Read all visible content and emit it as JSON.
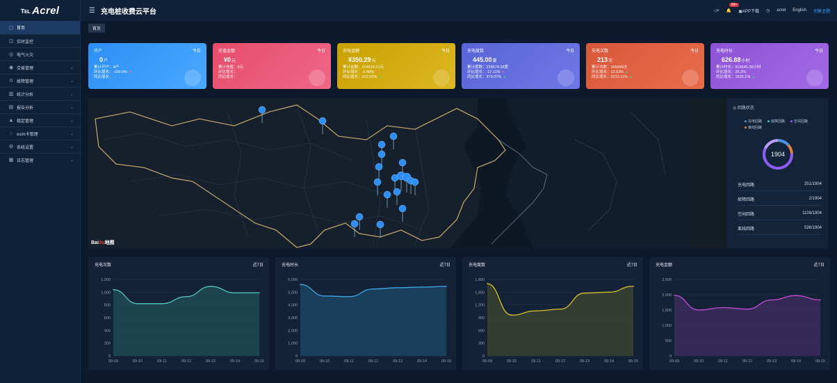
{
  "app": {
    "logo_mark": "℡",
    "logo_text": "Acrel",
    "page_title": "充电桩收费云平台",
    "menu_icon": "hamburger-icon"
  },
  "header": {
    "badge": "99+",
    "app_download": "APP下载",
    "user": "acrel",
    "language": "English",
    "switch_theme": "切换主题"
  },
  "tabs": [
    {
      "label": "首页"
    }
  ],
  "sidebar": {
    "items": [
      {
        "icon": "▢",
        "label": "首页",
        "chevron": false
      },
      {
        "icon": "◫",
        "label": "实时监控",
        "chevron": false
      },
      {
        "icon": "◎",
        "label": "电气火灾",
        "chevron": false
      },
      {
        "icon": "◉",
        "label": "交易管理",
        "chevron": true
      },
      {
        "icon": "⊙",
        "label": "故障管理",
        "chevron": true
      },
      {
        "icon": "▥",
        "label": "统计分析",
        "chevron": true
      },
      {
        "icon": "▤",
        "label": "报告分析",
        "chevron": true
      },
      {
        "icon": "▲",
        "label": "稳定管理",
        "chevron": true
      },
      {
        "icon": "◌",
        "label": "esim卡管理",
        "chevron": true
      },
      {
        "icon": "⚙",
        "label": "系统设置",
        "chevron": true
      },
      {
        "icon": "▦",
        "label": "日志管理",
        "chevron": true
      }
    ]
  },
  "cards": [
    {
      "title": "开户",
      "today": "今日",
      "value": "0",
      "unit": "户",
      "lines": [
        "累计开户：4户",
        "环比增长：-100.0%",
        "同比增长："
      ],
      "arrow": [
        "",
        "▼",
        ""
      ],
      "color_from": "#2b8ff3",
      "color_to": "#4aa9ff"
    },
    {
      "title": "充值金额",
      "today": "今日",
      "value": "¥0",
      "unit": "元",
      "lines": [
        "累计充值：0元",
        "环比增长：",
        "同比增长："
      ],
      "arrow": [
        "",
        "",
        ""
      ],
      "color_from": "#e64d69",
      "color_to": "#f0678a"
    },
    {
      "title": "充电金额",
      "today": "今日",
      "value": "¥350.29",
      "unit": "元",
      "lines": [
        "累计金额：314619.21元",
        "环比增长：-6.48%",
        "同比增长：412.52%"
      ],
      "arrow": [
        "",
        "▼",
        "▲"
      ],
      "color_from": "#c9a100",
      "color_to": "#dcb722"
    },
    {
      "title": "充电度数",
      "today": "今日",
      "value": "445.00",
      "unit": "度",
      "lines": [
        "累计度数：228674.28度",
        "环比增长：-17.11%",
        "同比增长：379.07%"
      ],
      "arrow": [
        "",
        "▼",
        "▲"
      ],
      "color_from": "#5964d6",
      "color_to": "#6f78e6"
    },
    {
      "title": "充电次数",
      "today": "今日",
      "value": "213",
      "unit": "次",
      "lines": [
        "累计次数：165949次",
        "环比增长：12.53%",
        "同比增长：2213.11%"
      ],
      "arrow": [
        "",
        "▲",
        "▲"
      ],
      "color_from": "#d8573a",
      "color_to": "#e86c4c"
    },
    {
      "title": "充电时长",
      "today": "今日",
      "value": "626.88",
      "unit": "小时",
      "lines": [
        "累计时长：916645.30小时",
        "环比增长：25.3%",
        "同比增长：1526.1%"
      ],
      "arrow": [
        "",
        "",
        "▲"
      ],
      "color_from": "#8d52d6",
      "color_to": "#a26ae6"
    }
  ],
  "map": {
    "logo": "Bai",
    "logo_accent": "du",
    "logo_suffix": "地图"
  },
  "status": {
    "title": "回路状态",
    "legend": [
      {
        "label": "充电回路",
        "color": "#4a90e2"
      },
      {
        "label": "故障回路",
        "color": "#3cc6c6"
      },
      {
        "label": "空闲回路",
        "color": "#8b5cf6"
      },
      {
        "label": "离线回路",
        "color": "#e0823c"
      }
    ],
    "total": "1904",
    "rows": [
      {
        "label": "充电回路",
        "value": "251/1904"
      },
      {
        "label": "故障回路",
        "value": "2/1904"
      },
      {
        "label": "空闲回路",
        "value": "1109/1904"
      },
      {
        "label": "离线回路",
        "value": "536/1904"
      }
    ]
  },
  "chart_data": [
    {
      "type": "area",
      "title": "充电次数",
      "period": "近7日",
      "categories": [
        "09-09",
        "09-10",
        "09-11",
        "09-12",
        "09-13",
        "09-14",
        "09-15"
      ],
      "yticks": [
        "0",
        "200",
        "400",
        "600",
        "800",
        "1,000",
        "1,200"
      ],
      "ylim": [
        0,
        1200
      ],
      "series": [
        {
          "values": [
            1040,
            820,
            820,
            930,
            1090,
            990,
            990
          ]
        }
      ],
      "color": "#4fc7c0",
      "fill": "#1f4a52"
    },
    {
      "type": "area",
      "title": "充电时长",
      "period": "近7日",
      "categories": [
        "09-09",
        "09-10",
        "09-11",
        "09-12",
        "09-13",
        "09-14",
        "09-15"
      ],
      "yticks": [
        "0",
        "1,000",
        "2,000",
        "3,000",
        "4,000",
        "5,000",
        "6,000"
      ],
      "ylim": [
        0,
        6000
      ],
      "series": [
        {
          "values": [
            5600,
            4700,
            4650,
            5250,
            5350,
            5400,
            5450
          ]
        }
      ],
      "color": "#3fa6e8",
      "fill": "#1b4461"
    },
    {
      "type": "area",
      "title": "充电度数",
      "period": "近7日",
      "categories": [
        "09-09",
        "09-10",
        "09-11",
        "09-12",
        "09-13",
        "09-14",
        "09-15"
      ],
      "yticks": [
        "0",
        "300",
        "600",
        "900",
        "1,200",
        "1,500",
        "1,800"
      ],
      "ylim": [
        0,
        1800
      ],
      "series": [
        {
          "values": [
            1700,
            960,
            1060,
            1100,
            1480,
            1500,
            1640
          ]
        }
      ],
      "color": "#d8c02a",
      "fill": "#3a4230"
    },
    {
      "type": "area",
      "title": "充电金额",
      "period": "近7日",
      "categories": [
        "09-09",
        "09-10",
        "09-11",
        "09-12",
        "09-13",
        "09-14",
        "09-15"
      ],
      "yticks": [
        "0",
        "500",
        "1,000",
        "1,500",
        "2,000",
        "2,500"
      ],
      "ylim": [
        0,
        2500
      ],
      "series": [
        {
          "values": [
            1980,
            1500,
            1580,
            1530,
            1830,
            1970,
            1830
          ]
        }
      ],
      "color": "#c24ed6",
      "fill": "#3b2c5c"
    }
  ]
}
